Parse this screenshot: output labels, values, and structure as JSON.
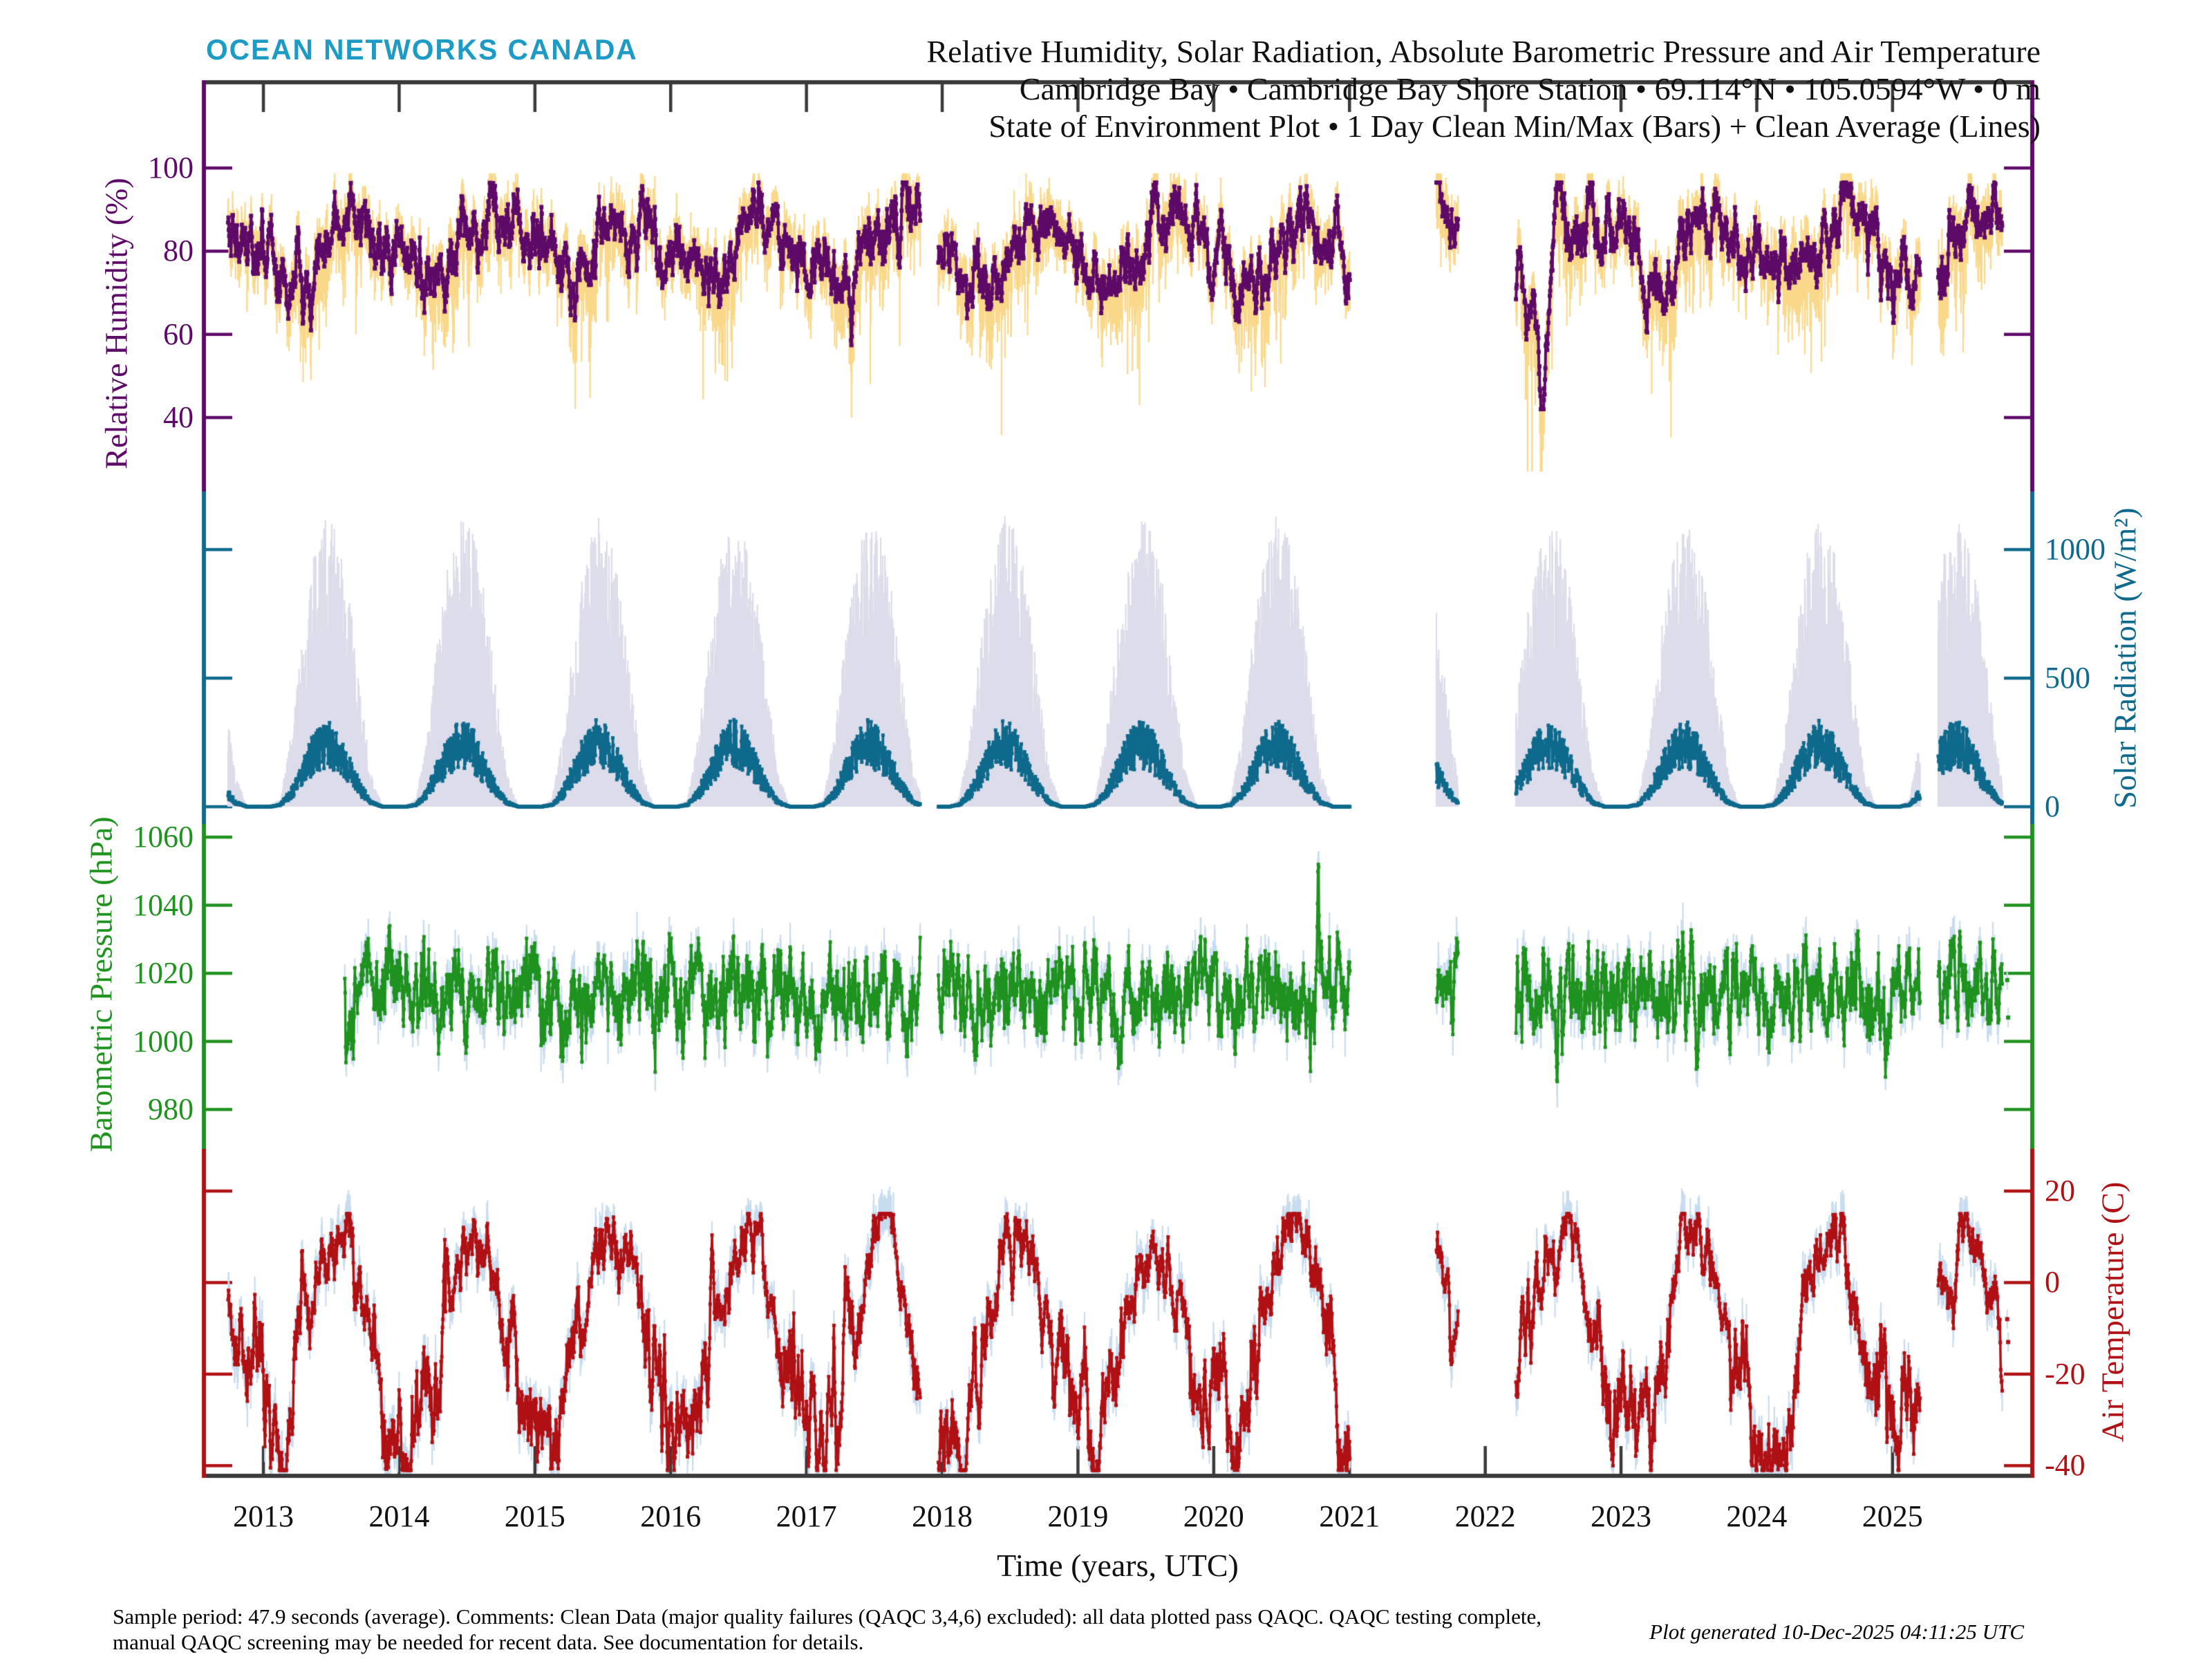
{
  "header": {
    "logo": "OCEAN NETWORKS CANADA",
    "logo_color": "#1D9BC4",
    "title_line1": "Relative Humidity, Solar Radiation, Absolute Barometric Pressure and Air Temperature",
    "title_line2": "Cambridge Bay • Cambridge Bay Shore Station • 69.114°N • 105.0594°W • 0 m",
    "title_line3": "State of Environment Plot • 1 Day Clean Min/Max (Bars) + Clean Average (Lines)"
  },
  "footer": {
    "left_line1": "Sample period: 47.9 seconds (average). Comments: Clean Data (major quality failures (QAQC 3,4,6) excluded): all data plotted pass QAQC. QAQC testing complete,",
    "left_line2": "manual QAQC screening may be needed for recent data. See documentation for details.",
    "right": "Plot generated 10-Dec-2025 04:11:25 UTC"
  },
  "chart_data": {
    "type": "line",
    "description": "Four stacked time-series panels, daily clean min/max bars with clean average lines, Oct 2012 - Nov 2025",
    "x_axis": {
      "label": "Time (years, UTC)",
      "ticks": [
        2013,
        2014,
        2015,
        2016,
        2017,
        2018,
        2019,
        2020,
        2021,
        2022,
        2023,
        2024,
        2025
      ],
      "range_years": [
        2012.56,
        2026.05
      ]
    },
    "gaps": [
      [
        2017.84,
        2017.97
      ],
      [
        2021.005,
        2021.64
      ],
      [
        2021.8,
        2022.225
      ],
      [
        2025.205,
        2025.335
      ]
    ],
    "panels": [
      {
        "id": "rh",
        "ylabel": "Relative Humidity (%)",
        "side": "left",
        "line_color": "#5E0A68",
        "bar_color": "#FAD88A",
        "ticks": [
          100,
          80,
          60,
          40
        ],
        "y_range": [
          25,
          120
        ],
        "start": 2012.74,
        "end": 2025.81,
        "monthly_mean": [
          78,
          76,
          73,
          72,
          74,
          80,
          86,
          89,
          88,
          86,
          82,
          80
        ],
        "monthly_min_depth": [
          5,
          6,
          10,
          16,
          18,
          16,
          13,
          11,
          9,
          7,
          5,
          5
        ],
        "anomalies": [
          {
            "t": 2022.42,
            "width": 0.05,
            "depth": 32
          },
          {
            "t": 2022.3,
            "width": 0.03,
            "depth": 14
          }
        ]
      },
      {
        "id": "solar",
        "ylabel": "Solar Radiation (W/m²)",
        "side": "right",
        "line_color": "#0F6A8C",
        "bar_color": "#DCDCEA",
        "ticks": [
          1000,
          500,
          0
        ],
        "y_range": [
          -65,
          1225
        ],
        "start": 2012.74,
        "end": 2025.81,
        "monthly_mean": [
          0,
          8,
          60,
          150,
          235,
          275,
          245,
          165,
          80,
          18,
          1,
          0
        ],
        "monthly_max": [
          2,
          30,
          280,
          650,
          950,
          1080,
          1020,
          820,
          460,
          130,
          6,
          1
        ]
      },
      {
        "id": "pressure",
        "ylabel": "Barometric Pressure (hPa)",
        "side": "left",
        "line_color": "#1F921F",
        "bar_color": "#C8DCEF",
        "ticks": [
          1060,
          1040,
          1020,
          1000,
          980
        ],
        "y_range": [
          969,
          1064
        ],
        "start": 2013.6,
        "end": 2025.81,
        "baseline_mean": 1013.5,
        "anomalies": [
          {
            "t": 2020.77,
            "width": 0.012,
            "depth": -38
          },
          {
            "t": 2022.53,
            "width": 0.01,
            "depth": 26
          }
        ],
        "isolated_points": [
          [
            2025.845,
            1018
          ],
          [
            2025.852,
            1007
          ]
        ]
      },
      {
        "id": "temp",
        "ylabel": "Air Temperature (C)",
        "side": "right",
        "line_color": "#B01114",
        "bar_color": "#C8DCEF",
        "ticks": [
          20,
          0,
          -20,
          -40
        ],
        "y_range": [
          -42,
          26
        ],
        "start": 2012.74,
        "end": 2025.81,
        "monthly_mean": [
          -31.5,
          -33,
          -28.5,
          -18,
          -6.5,
          3.5,
          9.5,
          7.5,
          0.5,
          -9.5,
          -21,
          -28.5
        ],
        "isolated_points": [
          [
            2025.845,
            -8
          ],
          [
            2025.852,
            -13
          ]
        ]
      }
    ]
  }
}
